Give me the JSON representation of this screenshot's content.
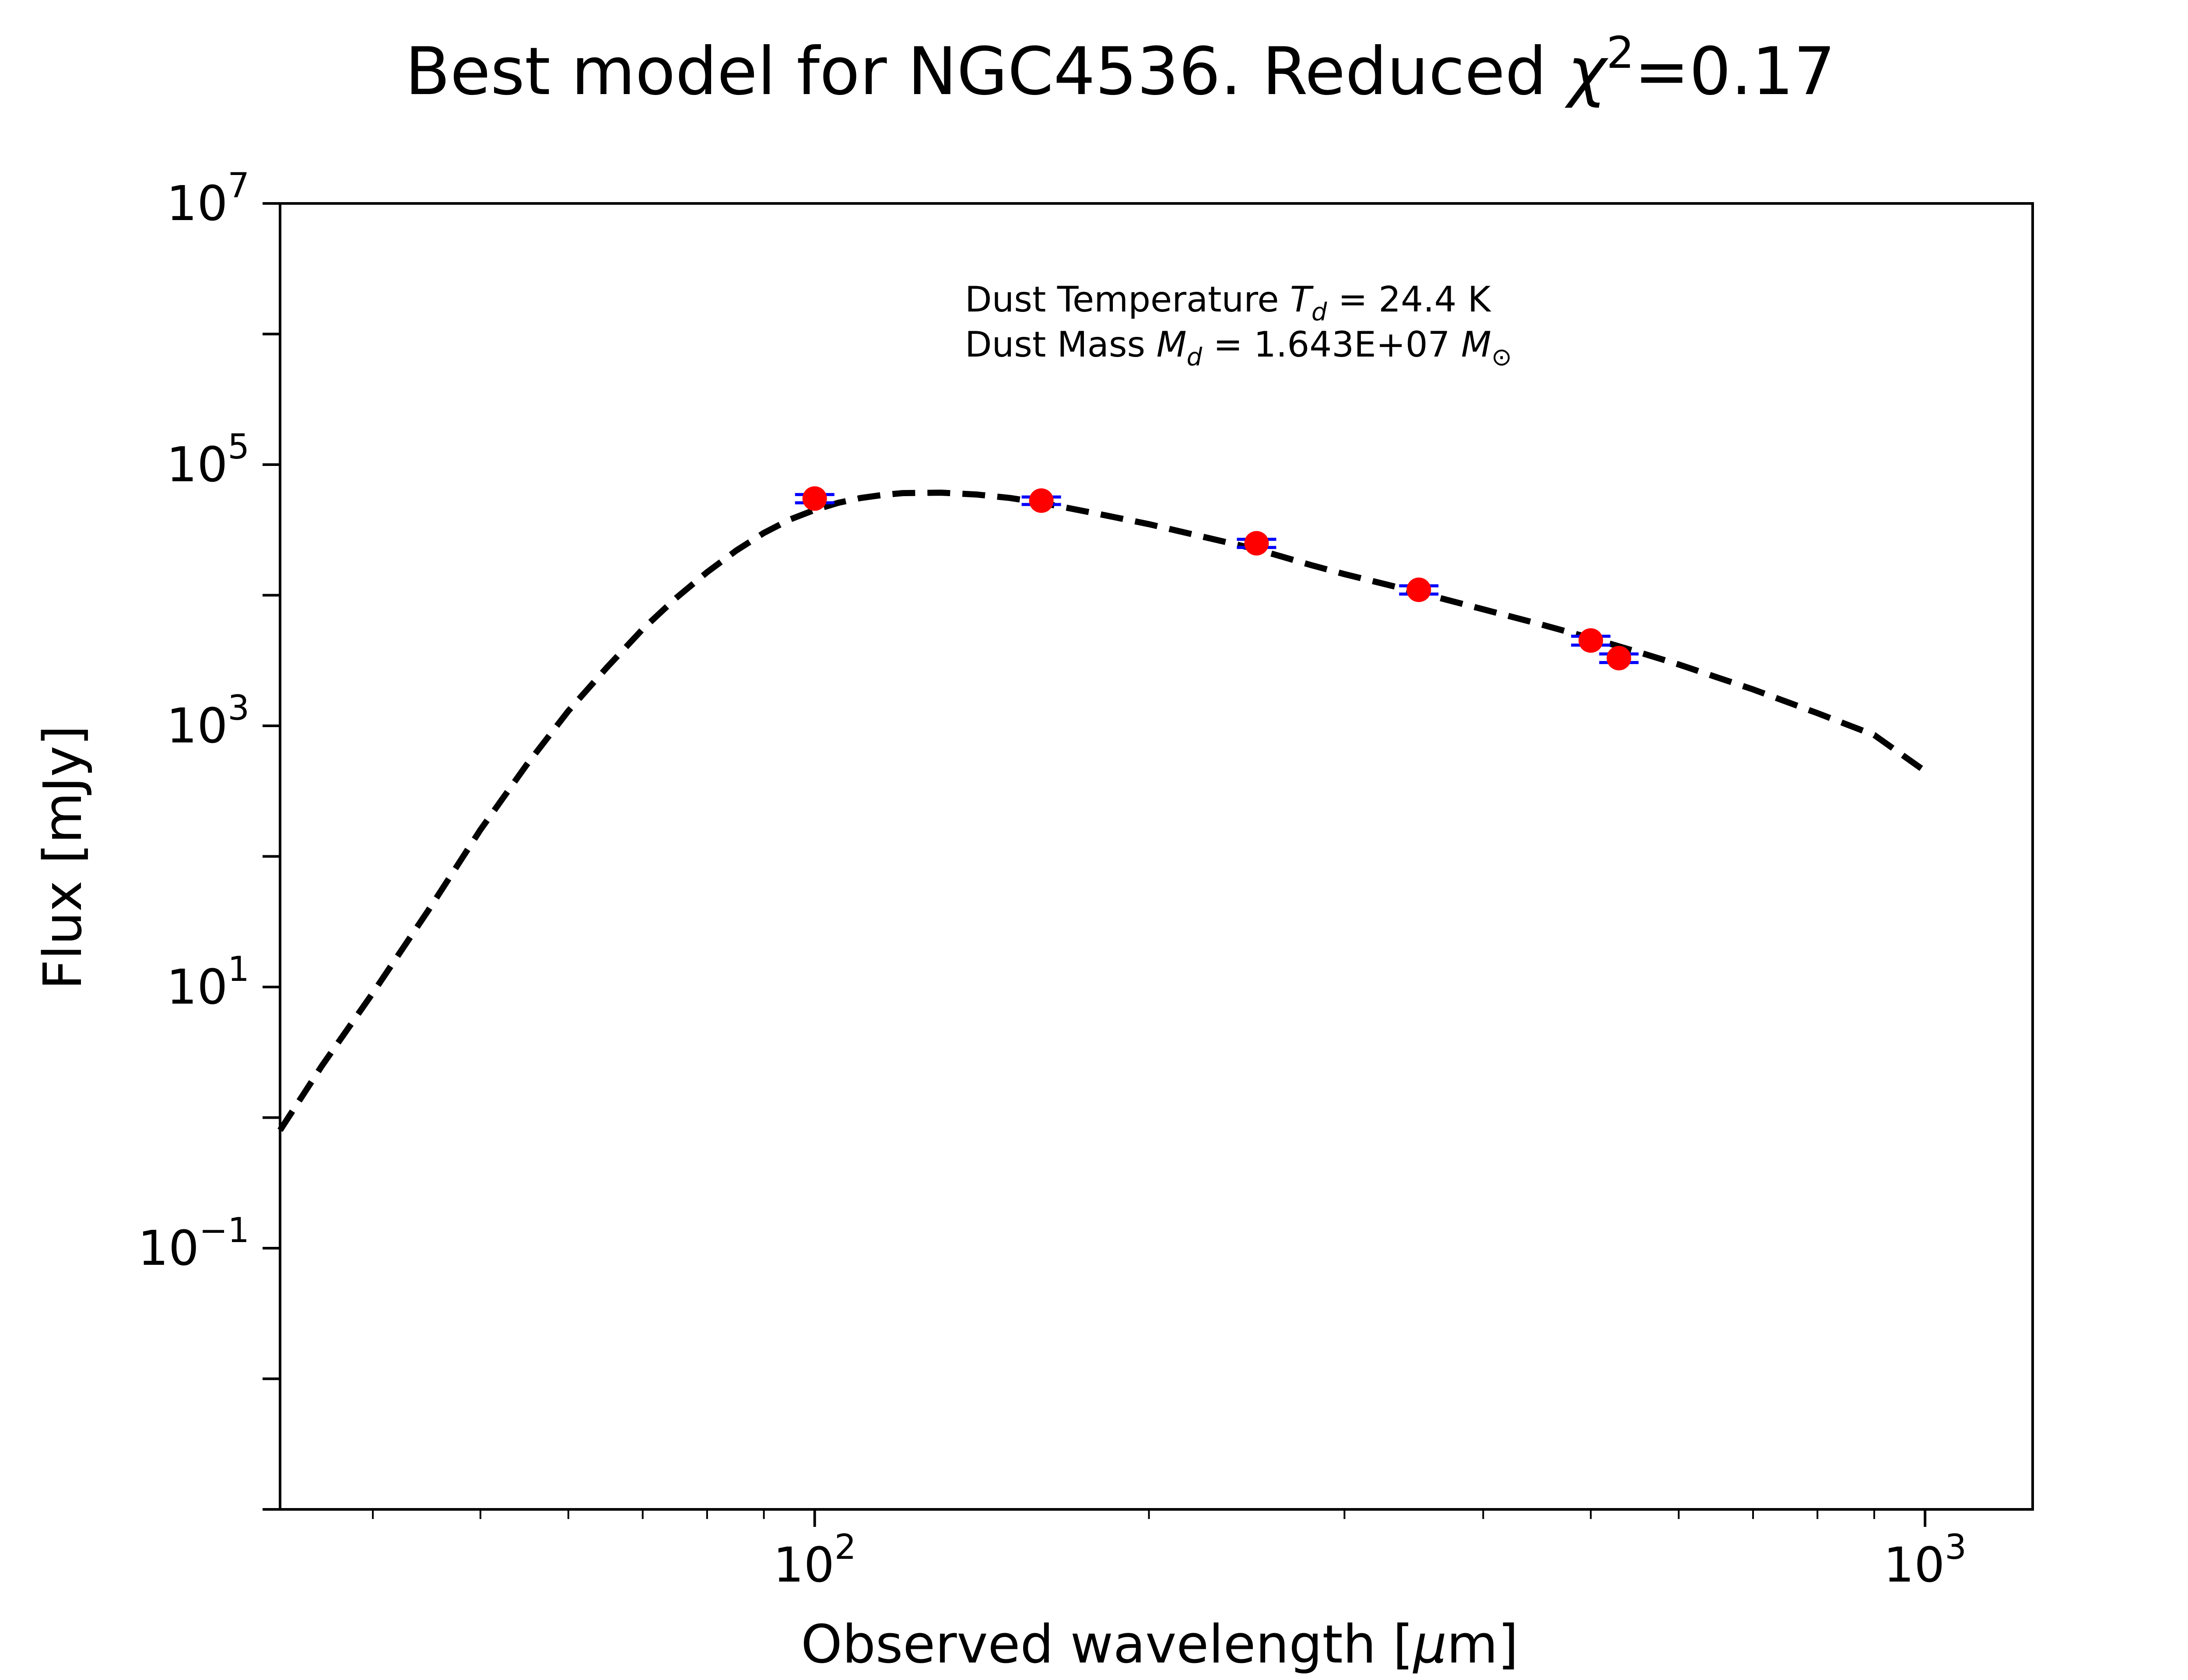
{
  "chart_data": {
    "type": "scatter",
    "title": {
      "main": "Best model for NGC4536. Reduced ",
      "chi": "χ",
      "chi_exp": "2",
      "tail": "=0.17"
    },
    "xlabel": {
      "main": "Observed wavelength [",
      "mu": "μ",
      "tail": "m]"
    },
    "ylabel": "Flux [mJy]",
    "xscale": "log",
    "yscale": "log",
    "xlim": [
      33,
      1250
    ],
    "ylim": [
      0.001,
      10000000
    ],
    "x_ticks": [
      {
        "value": 100,
        "base": "10",
        "exp": "2"
      },
      {
        "value": 1000,
        "base": "10",
        "exp": "3"
      }
    ],
    "y_ticks": [
      {
        "value": 0.1,
        "base": "10",
        "exp": "−1"
      },
      {
        "value": 10,
        "base": "10",
        "exp": "1"
      },
      {
        "value": 1000,
        "base": "10",
        "exp": "3"
      },
      {
        "value": 100000,
        "base": "10",
        "exp": "5"
      },
      {
        "value": 10000000,
        "base": "10",
        "exp": "7"
      }
    ],
    "annotation": {
      "line1_prefix": "Dust Temperature ",
      "line1_sym": "T",
      "line1_sub": "d",
      "line1_value": " = 24.4 K",
      "line2_prefix": "Dust Mass ",
      "line2_sym": "M",
      "line2_sub": "d",
      "line2_value": " = 1.643E+07 ",
      "line2_unit": "M",
      "line2_unit_sub": "⊙"
    },
    "model_curve": {
      "style": "dashed",
      "color": "#000000",
      "points": [
        [
          33,
          0.8
        ],
        [
          36,
          2.5
        ],
        [
          40,
          9
        ],
        [
          45,
          40
        ],
        [
          50,
          160
        ],
        [
          55,
          500
        ],
        [
          60,
          1300
        ],
        [
          65,
          2800
        ],
        [
          70,
          5500
        ],
        [
          75,
          9500
        ],
        [
          80,
          15000
        ],
        [
          85,
          22000
        ],
        [
          90,
          30000
        ],
        [
          95,
          38000
        ],
        [
          100,
          45000
        ],
        [
          105,
          51000
        ],
        [
          110,
          55500
        ],
        [
          115,
          58500
        ],
        [
          120,
          60500
        ],
        [
          130,
          61000
        ],
        [
          140,
          59000
        ],
        [
          150,
          55500
        ],
        [
          160,
          51000
        ],
        [
          180,
          42000
        ],
        [
          200,
          35000
        ],
        [
          220,
          29000
        ],
        [
          250,
          22500
        ],
        [
          280,
          17000
        ],
        [
          300,
          14500
        ],
        [
          350,
          10500
        ],
        [
          400,
          7800
        ],
        [
          450,
          6000
        ],
        [
          500,
          4700
        ],
        [
          550,
          3700
        ],
        [
          600,
          2950
        ],
        [
          700,
          1900
        ],
        [
          800,
          1250
        ],
        [
          900,
          850
        ],
        [
          1000,
          450
        ]
      ]
    },
    "observations": {
      "marker_color": "#ff0000",
      "errorbar_color": "#0000ff",
      "points": [
        {
          "x": 100,
          "y": 55000,
          "err": 4000
        },
        {
          "x": 160,
          "y": 53000,
          "err": 3500
        },
        {
          "x": 250,
          "y": 25000,
          "err": 1800
        },
        {
          "x": 350,
          "y": 11000,
          "err": 800
        },
        {
          "x": 500,
          "y": 4500,
          "err": 350
        },
        {
          "x": 530,
          "y": 3300,
          "err": 250
        }
      ]
    }
  }
}
